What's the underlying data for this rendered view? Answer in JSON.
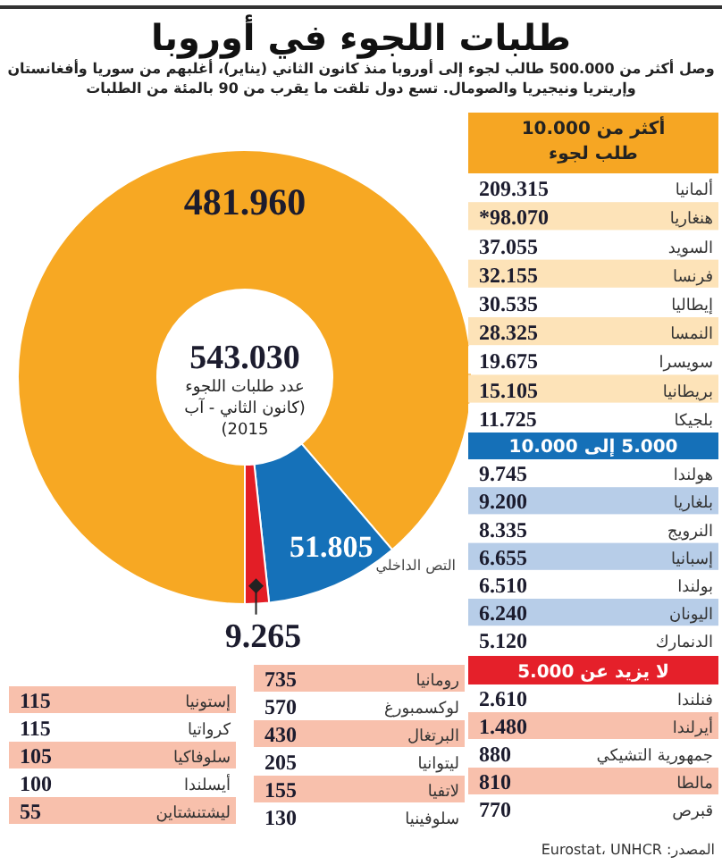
{
  "chart_data": [
    {
      "type": "donut",
      "title": "طلبات اللجوء في أوروبا",
      "subtitle": "وصل أكثر من 500.000 طالب لجوء إلى أوروبا منذ كانون الثاني (يناير)، أغلبهم من سوريا وأفغانستان وإريتريا ونيجيريا والصومال. تسع دول تلقت ما يقرب من 90 بالمئة من الطلبات",
      "categories": [
        null,
        null,
        null
      ],
      "values": [
        481960,
        51805,
        9265
      ],
      "colors": [
        "#f7a823",
        "#1571b9",
        "#e31e26"
      ],
      "value_labels": [
        "481.960",
        "51.805",
        "9.265"
      ],
      "annotations": [
        "543.030",
        "عدد طلبات اللجوء (كانون الثاني - آب 2015)",
        "التص الداخلي"
      ]
    },
    {
      "type": "other",
      "title": "أكثر من 10.000 طلب لجوء",
      "color": "#f6a623",
      "categories": [
        "ألمانيا",
        "هنغاريا",
        "السويد",
        "فرنسا",
        "إيطاليا",
        "النمسا",
        "سويسرا",
        "بريطانيا",
        "بلجيكا"
      ],
      "value_labels": [
        "209.315",
        "*98.070",
        "37.055",
        "32.155",
        "30.535",
        "28.325",
        "19.675",
        "15.105",
        "11.725"
      ],
      "colors": [
        "#ffffff",
        "#fde3b8",
        "#ffffff",
        "#fde3b8",
        "#ffffff",
        "#fde3b8",
        "#ffffff",
        "#fde3b8",
        "#ffffff"
      ]
    },
    {
      "type": "other",
      "title": "5.000 إلى 10.000",
      "color": "#1570b8",
      "categories": [
        "هولندا",
        "بلغاريا",
        "النرويج",
        "إسبانيا",
        "بولندا",
        "اليونان",
        "الدنمارك"
      ],
      "value_labels": [
        "9.745",
        "9.200",
        "8.335",
        "6.655",
        "6.510",
        "6.240",
        "5.120"
      ],
      "colors": [
        "#ffffff",
        "#b7cde8",
        "#ffffff",
        "#b7cde8",
        "#ffffff",
        "#b7cde8",
        "#ffffff"
      ]
    },
    {
      "type": "other",
      "title": "لا يزيد عن 5.000",
      "color": "#e5202a",
      "categories": [
        "فنلندا",
        "أيرلندا",
        "جمهورية التشيكي",
        "مالطا",
        "قبرص",
        "رومانيا",
        "لوكسمبورغ",
        "البرتغال",
        "ليتوانيا",
        "لاتفيا",
        "سلوفينيا",
        "إستونيا",
        "كرواتيا",
        "سلوفاكيا",
        "أيسلندا",
        "ليشتنشتاين"
      ],
      "value_labels": [
        "2.610",
        "1.480",
        "880",
        "810",
        "770",
        "735",
        "570",
        "430",
        "205",
        "155",
        "130",
        "115",
        "115",
        "105",
        "100",
        "55"
      ],
      "colors": [
        "#ffffff",
        "#f8c0ac",
        "#ffffff",
        "#f8c0ac",
        "#ffffff",
        "#f8c0ac",
        "#ffffff",
        "#f8c0ac",
        "#ffffff",
        "#f8c0ac",
        "#ffffff",
        "#f8c0ac",
        "#ffffff",
        "#f8c0ac",
        "#ffffff",
        "#f8c0ac"
      ],
      "annotations": [
        "المصدر: Eurostat، UNHCR"
      ]
    }
  ]
}
